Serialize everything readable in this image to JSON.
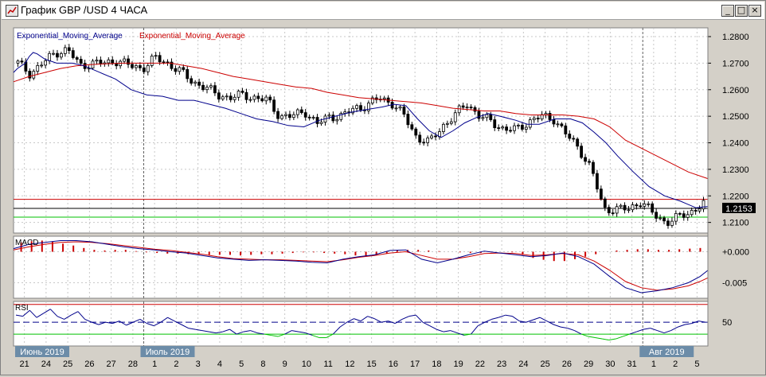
{
  "window": {
    "title": "График GBP /USD  4 ЧАСА",
    "minimize_glyph": "_",
    "maximize_glyph": "□",
    "close_glyph": "×"
  },
  "chart_data": [
    {
      "type": "candlestick",
      "panel": "price",
      "legend": [
        "Exponential_Moving_Average",
        "Exponential_Moving_Average"
      ],
      "legend_colors": [
        "#00008b",
        "#cc0000"
      ],
      "y_ticks": [
        "1.2800",
        "1.2700",
        "1.2600",
        "1.2500",
        "1.2400",
        "1.2300",
        "1.2200",
        "1.2100"
      ],
      "ylim": [
        1.206,
        1.2833
      ],
      "current_price_label": "1.2153",
      "current_price": 1.2153,
      "hlines": [
        {
          "value": 1.2187,
          "color": "#cc0000"
        },
        {
          "value": 1.2153,
          "color": "#000000"
        },
        {
          "value": 1.212,
          "color": "#00c000"
        }
      ],
      "close_anchors": [
        1.27,
        1.266,
        1.27,
        1.274,
        1.275,
        1.269,
        1.27,
        1.27,
        1.271,
        1.269,
        1.268,
        1.272,
        1.27,
        1.267,
        1.263,
        1.261,
        1.258,
        1.257,
        1.258,
        1.257,
        1.256,
        1.25,
        1.25,
        1.252,
        1.247,
        1.25,
        1.25,
        1.253,
        1.254,
        1.257,
        1.255,
        1.25,
        1.242,
        1.24,
        1.246,
        1.25,
        1.255,
        1.25,
        1.248,
        1.245,
        1.245,
        1.248,
        1.25,
        1.249,
        1.243,
        1.238,
        1.23,
        1.215,
        1.215,
        1.215,
        1.218,
        1.213,
        1.21,
        1.212,
        1.214,
        1.217
      ],
      "ema_fast": [
        [
          0,
          1.2665
        ],
        [
          5,
          1.268
        ],
        [
          10,
          1.269
        ],
        [
          15,
          1.27
        ],
        [
          20,
          1.2725
        ],
        [
          25,
          1.274
        ],
        [
          30,
          1.2735
        ],
        [
          40,
          1.2715
        ],
        [
          55,
          1.27
        ],
        [
          65,
          1.27
        ],
        [
          75,
          1.27
        ],
        [
          90,
          1.269
        ],
        [
          110,
          1.2665
        ],
        [
          130,
          1.264
        ],
        [
          150,
          1.26
        ],
        [
          170,
          1.258
        ],
        [
          190,
          1.2575
        ],
        [
          210,
          1.256
        ],
        [
          230,
          1.256
        ],
        [
          250,
          1.2545
        ],
        [
          270,
          1.253
        ],
        [
          290,
          1.251
        ],
        [
          310,
          1.249
        ],
        [
          330,
          1.248
        ],
        [
          350,
          1.2465
        ],
        [
          370,
          1.246
        ],
        [
          390,
          1.2485
        ],
        [
          410,
          1.25
        ],
        [
          430,
          1.2515
        ],
        [
          450,
          1.2525
        ],
        [
          470,
          1.2535
        ],
        [
          485,
          1.2545
        ],
        [
          500,
          1.254
        ],
        [
          515,
          1.249
        ],
        [
          530,
          1.2445
        ],
        [
          545,
          1.242
        ],
        [
          560,
          1.2445
        ],
        [
          575,
          1.2475
        ],
        [
          590,
          1.2495
        ],
        [
          605,
          1.251
        ],
        [
          620,
          1.25
        ],
        [
          640,
          1.2485
        ],
        [
          655,
          1.247
        ],
        [
          670,
          1.247
        ],
        [
          690,
          1.249
        ],
        [
          710,
          1.249
        ],
        [
          725,
          1.2475
        ],
        [
          740,
          1.244
        ],
        [
          755,
          1.24
        ],
        [
          770,
          1.235
        ],
        [
          790,
          1.229
        ],
        [
          810,
          1.2235
        ],
        [
          830,
          1.22
        ],
        [
          850,
          1.218
        ],
        [
          870,
          1.2155
        ],
        [
          885,
          1.216
        ]
      ],
      "ema_slow": [
        [
          0,
          1.263
        ],
        [
          20,
          1.265
        ],
        [
          40,
          1.2665
        ],
        [
          60,
          1.268
        ],
        [
          80,
          1.269
        ],
        [
          100,
          1.2695
        ],
        [
          120,
          1.2698
        ],
        [
          140,
          1.27
        ],
        [
          160,
          1.27
        ],
        [
          180,
          1.27
        ],
        [
          200,
          1.27
        ],
        [
          220,
          1.269
        ],
        [
          240,
          1.268
        ],
        [
          260,
          1.2665
        ],
        [
          280,
          1.265
        ],
        [
          300,
          1.264
        ],
        [
          320,
          1.263
        ],
        [
          340,
          1.262
        ],
        [
          360,
          1.261
        ],
        [
          380,
          1.2605
        ],
        [
          400,
          1.259
        ],
        [
          420,
          1.258
        ],
        [
          440,
          1.257
        ],
        [
          460,
          1.2565
        ],
        [
          480,
          1.256
        ],
        [
          500,
          1.2555
        ],
        [
          520,
          1.255
        ],
        [
          540,
          1.254
        ],
        [
          560,
          1.253
        ],
        [
          580,
          1.2525
        ],
        [
          600,
          1.252
        ],
        [
          620,
          1.252
        ],
        [
          640,
          1.251
        ],
        [
          660,
          1.2505
        ],
        [
          680,
          1.2505
        ],
        [
          700,
          1.2505
        ],
        [
          720,
          1.25
        ],
        [
          740,
          1.249
        ],
        [
          760,
          1.246
        ],
        [
          780,
          1.241
        ],
        [
          800,
          1.238
        ],
        [
          820,
          1.235
        ],
        [
          840,
          1.232
        ],
        [
          860,
          1.229
        ],
        [
          885,
          1.2265
        ]
      ]
    },
    {
      "type": "histogram+line",
      "panel": "indicator",
      "title": "MACD",
      "y_ticks": [
        "+0.000",
        "-0.005"
      ],
      "ylim": [
        -0.0075,
        0.0025
      ],
      "histogram": [
        0.0015,
        0.0017,
        0.0018,
        0.0016,
        0.0013,
        0.001,
        0.0006,
        0.0003,
        0.0002,
        0.0003,
        0.0003,
        0.0001,
        -0.0001,
        -0.0002,
        -0.0003,
        -0.0003,
        -0.0004,
        -0.0004,
        -0.0005,
        -0.0005,
        -0.0005,
        -0.0006,
        -0.0005,
        -0.0004,
        -0.0004,
        -0.0003,
        -0.0002,
        -0.0001,
        -0.0001,
        -0.0002,
        -0.0003,
        -0.0004,
        -0.0006,
        -0.0008,
        -0.0006,
        -0.0003,
        0.0002,
        0.0003,
        0.0003,
        0.0002,
        0.0001,
        0.0,
        -0.0001,
        -0.0002,
        -0.0002,
        -0.0001,
        0.0,
        -0.0001,
        -0.0005,
        -0.001,
        -0.0013,
        -0.0015,
        -0.0015,
        -0.0012,
        -0.0008,
        -0.0004,
        0.0,
        0.0002,
        0.0003,
        0.0004,
        0.0004,
        0.0003,
        0.0003,
        0.0004,
        0.0005,
        0.0006
      ],
      "macd_line": [
        [
          0,
          0.0005
        ],
        [
          20,
          0.0012
        ],
        [
          40,
          0.0015
        ],
        [
          60,
          0.0018
        ],
        [
          80,
          0.0018
        ],
        [
          100,
          0.0016
        ],
        [
          120,
          0.0012
        ],
        [
          140,
          0.0008
        ],
        [
          160,
          0.0005
        ],
        [
          180,
          0.0003
        ],
        [
          200,
          0.0
        ],
        [
          220,
          -0.0002
        ],
        [
          240,
          -0.0006
        ],
        [
          260,
          -0.001
        ],
        [
          280,
          -0.0012
        ],
        [
          300,
          -0.0014
        ],
        [
          320,
          -0.0013
        ],
        [
          340,
          -0.0014
        ],
        [
          360,
          -0.0015
        ],
        [
          380,
          -0.0017
        ],
        [
          400,
          -0.0018
        ],
        [
          420,
          -0.0012
        ],
        [
          440,
          -0.0008
        ],
        [
          460,
          -0.0005
        ],
        [
          480,
          0.0002
        ],
        [
          500,
          0.0003
        ],
        [
          520,
          -0.0012
        ],
        [
          540,
          -0.0018
        ],
        [
          560,
          -0.0012
        ],
        [
          580,
          -0.0005
        ],
        [
          600,
          0.0001
        ],
        [
          620,
          -0.0002
        ],
        [
          640,
          -0.0005
        ],
        [
          660,
          -0.0008
        ],
        [
          680,
          -0.0006
        ],
        [
          700,
          -0.0002
        ],
        [
          720,
          -0.0008
        ],
        [
          740,
          -0.002
        ],
        [
          760,
          -0.004
        ],
        [
          780,
          -0.0058
        ],
        [
          800,
          -0.0066
        ],
        [
          820,
          -0.0063
        ],
        [
          840,
          -0.0058
        ],
        [
          860,
          -0.005
        ],
        [
          875,
          -0.004
        ],
        [
          885,
          -0.003
        ]
      ],
      "signal_line": [
        [
          0,
          0.0003
        ],
        [
          20,
          0.0008
        ],
        [
          40,
          0.0012
        ],
        [
          60,
          0.0015
        ],
        [
          80,
          0.0016
        ],
        [
          100,
          0.0015
        ],
        [
          120,
          0.0013
        ],
        [
          140,
          0.001
        ],
        [
          160,
          0.0007
        ],
        [
          180,
          0.0004
        ],
        [
          200,
          0.0002
        ],
        [
          220,
          -0.0001
        ],
        [
          240,
          -0.0004
        ],
        [
          260,
          -0.0008
        ],
        [
          280,
          -0.0011
        ],
        [
          300,
          -0.0012
        ],
        [
          320,
          -0.0013
        ],
        [
          340,
          -0.0013
        ],
        [
          360,
          -0.0014
        ],
        [
          380,
          -0.0015
        ],
        [
          400,
          -0.0016
        ],
        [
          420,
          -0.0013
        ],
        [
          440,
          -0.0009
        ],
        [
          460,
          -0.0006
        ],
        [
          480,
          -0.0002
        ],
        [
          500,
          0.0
        ],
        [
          520,
          -0.0006
        ],
        [
          540,
          -0.0012
        ],
        [
          560,
          -0.0012
        ],
        [
          580,
          -0.0008
        ],
        [
          600,
          -0.0003
        ],
        [
          620,
          -0.0002
        ],
        [
          640,
          -0.0003
        ],
        [
          660,
          -0.0006
        ],
        [
          680,
          -0.0005
        ],
        [
          700,
          -0.0003
        ],
        [
          720,
          -0.0005
        ],
        [
          740,
          -0.0015
        ],
        [
          760,
          -0.003
        ],
        [
          780,
          -0.0048
        ],
        [
          800,
          -0.0058
        ],
        [
          820,
          -0.0062
        ],
        [
          840,
          -0.006
        ],
        [
          860,
          -0.0055
        ],
        [
          875,
          -0.0048
        ],
        [
          885,
          -0.0042
        ]
      ]
    },
    {
      "type": "line",
      "panel": "indicator",
      "title": "RSI",
      "y_ticks": [
        "50"
      ],
      "ylim": [
        10,
        85
      ],
      "levels": [
        {
          "value": 80,
          "color": "#cc0000"
        },
        {
          "value": 50,
          "color": "#00008b"
        },
        {
          "value": 30,
          "color": "#00c000"
        }
      ],
      "values": [
        62,
        60,
        70,
        58,
        65,
        72,
        60,
        55,
        62,
        68,
        55,
        50,
        46,
        50,
        48,
        52,
        45,
        50,
        55,
        48,
        44,
        50,
        58,
        52,
        46,
        40,
        38,
        36,
        34,
        32,
        34,
        38,
        30,
        34,
        36,
        32,
        30,
        28,
        26,
        30,
        36,
        34,
        32,
        28,
        24,
        24,
        30,
        42,
        50,
        56,
        52,
        60,
        56,
        50,
        52,
        48,
        55,
        60,
        62,
        50,
        44,
        38,
        34,
        36,
        32,
        28,
        30,
        44,
        50,
        55,
        58,
        62,
        60,
        52,
        50,
        54,
        58,
        52,
        46,
        42,
        40,
        36,
        30,
        26,
        24,
        22,
        20,
        22,
        26,
        30,
        34,
        38,
        40,
        36,
        32,
        36,
        42,
        46,
        48,
        52,
        50
      ],
      "value_range_note": ""
    }
  ],
  "x_axis": {
    "labels": [
      "21",
      "24",
      "25",
      "26",
      "27",
      "28",
      "1",
      "2",
      "3",
      "4",
      "5",
      "8",
      "9",
      "10",
      "11",
      "12",
      "15",
      "16",
      "17",
      "18",
      "19",
      "22",
      "23",
      "24",
      "25",
      "26",
      "29",
      "30",
      "31",
      "1",
      "2",
      "5"
    ],
    "period_labels": [
      "Июнь 2019",
      "Июль 2019",
      "Авг 2019"
    ]
  }
}
